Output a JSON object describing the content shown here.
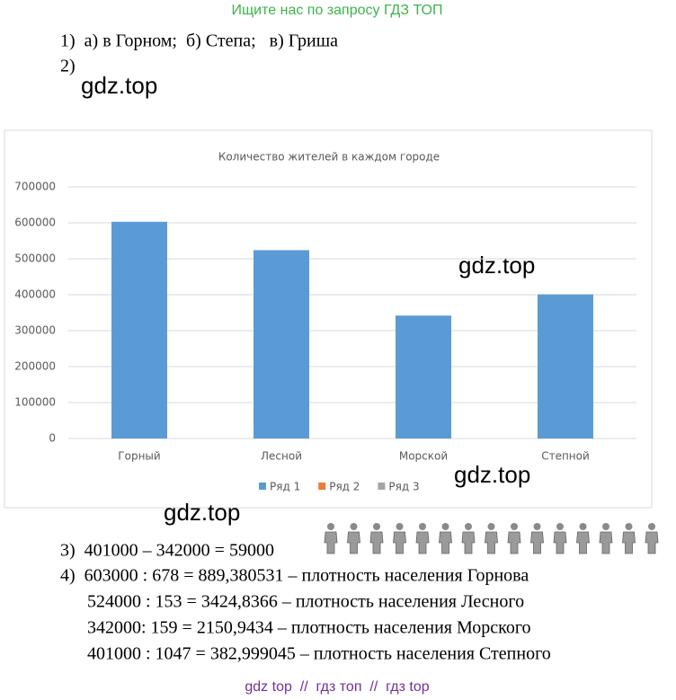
{
  "header": "Ищите нас по запросу ГДЗ ТОП",
  "lines": [
    "1)  а) в Горном;  б) Степа;   в) Гриша",
    "2)",
    "3)  401000 – 342000 = 59000",
    "4)  603000 : 678 = 889,380531 – плотность населения Горнова",
    "524000 : 153 = 3424,8366 – плотность населения Лесного",
    "342000: 159 = 2150,9434 – плотность населения Морского",
    "401000 : 1047 = 382,999045 – плотность населения Степного"
  ],
  "watermarks": [
    "gdz.top",
    "gdz.top",
    "gdz.top",
    "gdz.top"
  ],
  "footer": "gdz top  //  гдз топ  //  гдз top",
  "chart_data": {
    "type": "bar",
    "title": "Количество жителей в каждом городе",
    "categories": [
      "Горный",
      "Лесной",
      "Морской",
      "Степной"
    ],
    "series": [
      {
        "name": "Ряд 1",
        "color": "#5b9bd5",
        "values": [
          603000,
          524000,
          342000,
          401000
        ]
      },
      {
        "name": "Ряд 2",
        "color": "#ed7d31",
        "values": [
          null,
          null,
          null,
          null
        ]
      },
      {
        "name": "Ряд 3",
        "color": "#a5a5a5",
        "values": [
          null,
          null,
          null,
          null
        ]
      }
    ],
    "ylim": [
      0,
      700000
    ],
    "yticks": [
      0,
      100000,
      200000,
      300000,
      400000,
      500000,
      600000,
      700000
    ],
    "grid": true,
    "legend": "bottom"
  }
}
